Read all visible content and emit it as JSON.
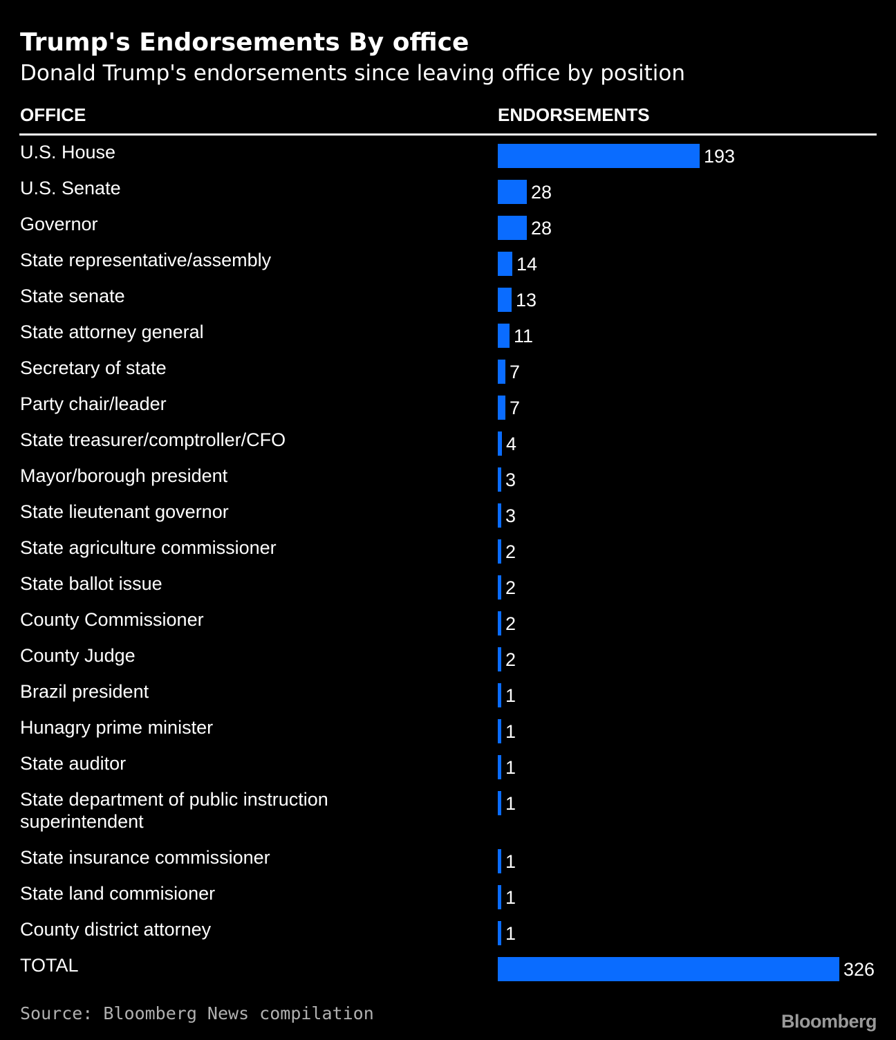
{
  "header": {
    "title": "Trump's Endorsements By office",
    "subtitle": "Donald Trump's endorsements since leaving office by position"
  },
  "columns": {
    "office": "OFFICE",
    "endorsements": "ENDORSEMENTS"
  },
  "colors": {
    "bar": "#0a6cff",
    "background": "#000000",
    "text": "#ffffff"
  },
  "chart_data": {
    "type": "bar",
    "orientation": "horizontal",
    "categories": [
      "U.S. House",
      "U.S. Senate",
      "Governor",
      "State representative/assembly",
      "State senate",
      "State attorney general",
      "Secretary of state",
      "Party chair/leader",
      "State treasurer/comptroller/CFO",
      "Mayor/borough president",
      "State lieutenant governor",
      "State agriculture commissioner",
      "State ballot issue",
      "County Commissioner",
      "County Judge",
      "Brazil president",
      "Hunagry prime minister",
      "State auditor",
      "State department of public instruction superintendent",
      "State insurance commissioner",
      "State land commisioner",
      "County district attorney",
      "TOTAL"
    ],
    "values": [
      193,
      28,
      28,
      14,
      13,
      11,
      7,
      7,
      4,
      3,
      3,
      2,
      2,
      2,
      2,
      1,
      1,
      1,
      1,
      1,
      1,
      1,
      326
    ],
    "xlim": [
      0,
      326
    ]
  },
  "footer": {
    "source": "Source: Bloomberg News compilation",
    "logo": "Bloomberg"
  }
}
